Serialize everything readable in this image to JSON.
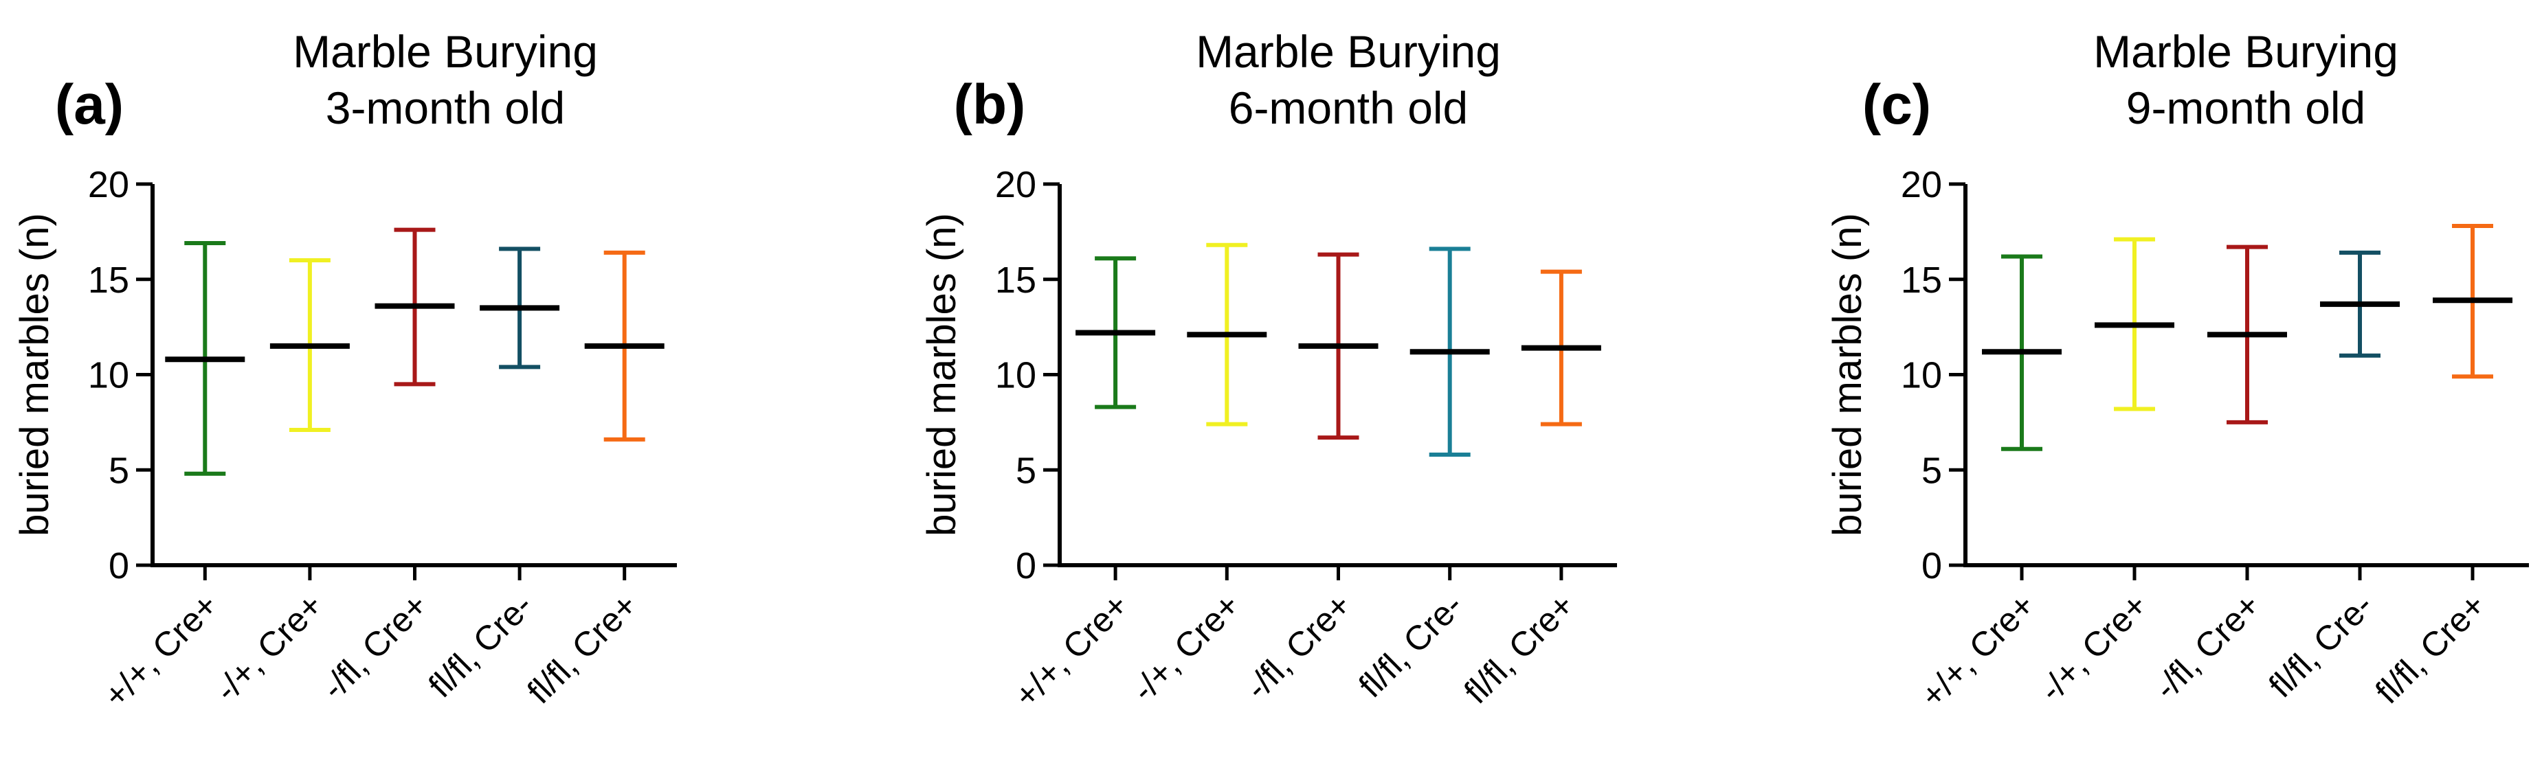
{
  "chart_data": [
    {
      "type": "errorbar",
      "panel_label": "(a)",
      "title": "Marble Burying",
      "subtitle": "3-month old",
      "xlabel": "",
      "ylabel": "buried marbles (n)",
      "ylim": [
        0,
        20
      ],
      "yticks": [
        "0",
        "5",
        "10",
        "15",
        "20"
      ],
      "categories": [
        "+/+, Cre+",
        "-/+, Cre+",
        "-/fl, Cre+",
        "fl/fl, Cre-",
        "fl/fl, Cre+"
      ],
      "colors": [
        "#1a7a1a",
        "#f0f022",
        "#a81818",
        "#134f63",
        "#f56a14"
      ],
      "mean": [
        10.8,
        11.5,
        13.6,
        13.5,
        11.5
      ],
      "upper": [
        16.9,
        16.0,
        17.6,
        16.6,
        16.4
      ],
      "lower": [
        4.8,
        7.1,
        9.5,
        10.4,
        6.6
      ]
    },
    {
      "type": "errorbar",
      "panel_label": "(b)",
      "title": "Marble Burying",
      "subtitle": "6-month old",
      "xlabel": "",
      "ylabel": "buried marbles (n)",
      "ylim": [
        0,
        20
      ],
      "yticks": [
        "0",
        "5",
        "10",
        "15",
        "20"
      ],
      "categories": [
        "+/+, Cre+",
        "-/+, Cre+",
        "-/fl, Cre+",
        "fl/fl, Cre-",
        "fl/fl, Cre+"
      ],
      "colors": [
        "#1a7a1a",
        "#f0f022",
        "#a81818",
        "#1a7f96",
        "#f56a14"
      ],
      "mean": [
        12.2,
        12.1,
        11.5,
        11.2,
        11.4
      ],
      "upper": [
        16.1,
        16.8,
        16.3,
        16.6,
        15.4
      ],
      "lower": [
        8.3,
        7.4,
        6.7,
        5.8,
        7.4
      ]
    },
    {
      "type": "errorbar",
      "panel_label": "(c)",
      "title": "Marble Burying",
      "subtitle": "9-month old",
      "xlabel": "",
      "ylabel": "buried marbles (n)",
      "ylim": [
        0,
        20
      ],
      "yticks": [
        "0",
        "5",
        "10",
        "15",
        "20"
      ],
      "categories": [
        "+/+, Cre+",
        "-/+, Cre+",
        "-/fl, Cre+",
        "fl/fl, Cre-",
        "fl/fl, Cre+"
      ],
      "colors": [
        "#1a7a1a",
        "#f0f022",
        "#a81818",
        "#134f63",
        "#f56a14"
      ],
      "mean": [
        11.2,
        12.6,
        12.1,
        13.7,
        13.9
      ],
      "upper": [
        16.2,
        17.1,
        16.7,
        16.4,
        17.8
      ],
      "lower": [
        6.1,
        8.2,
        7.5,
        11.0,
        9.9
      ]
    }
  ]
}
